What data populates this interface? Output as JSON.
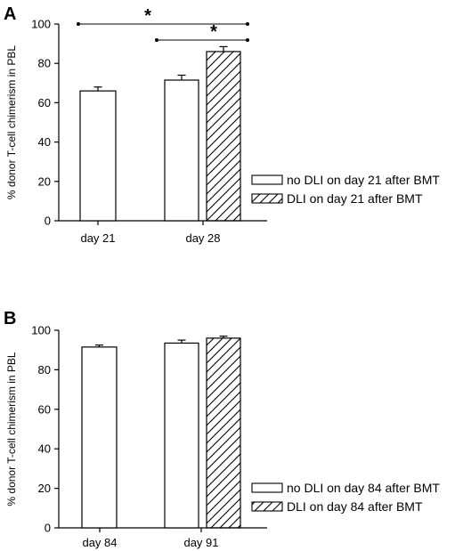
{
  "chart_data": [
    {
      "type": "bar",
      "panel_label": "A",
      "ylabel": "% donor T-cell chimerism in PBL",
      "ylim": [
        0,
        100
      ],
      "yticks": [
        0,
        20,
        40,
        60,
        80,
        100
      ],
      "categories": [
        "day 21",
        "day 28"
      ],
      "series": [
        {
          "name": "no DLI on day 21 after BMT",
          "pattern": "plain",
          "values": [
            66,
            71.5
          ],
          "errors": [
            2,
            2.5
          ]
        },
        {
          "name": "DLI on day 21 after BMT",
          "pattern": "hatched",
          "values": [
            null,
            86
          ],
          "errors": [
            null,
            2.5
          ]
        }
      ],
      "legend_position": "right",
      "significance": [
        {
          "label": "*",
          "from": "day 21 no DLI",
          "to": "day 28 DLI"
        },
        {
          "label": "*",
          "from": "day 28 no DLI",
          "to": "day 28 DLI"
        }
      ]
    },
    {
      "type": "bar",
      "panel_label": "B",
      "ylabel": "% donor T-cell chimerism in PBL",
      "ylim": [
        0,
        100
      ],
      "yticks": [
        0,
        20,
        40,
        60,
        80,
        100
      ],
      "categories": [
        "day 84",
        "day 91"
      ],
      "series": [
        {
          "name": "no DLI on day 84 after BMT",
          "pattern": "plain",
          "values": [
            91.5,
            93.5
          ],
          "errors": [
            1,
            1.5
          ]
        },
        {
          "name": "DLI on day 84 after BMT",
          "pattern": "hatched",
          "values": [
            null,
            96
          ],
          "errors": [
            null,
            1
          ]
        }
      ],
      "legend_position": "right",
      "significance": []
    }
  ]
}
